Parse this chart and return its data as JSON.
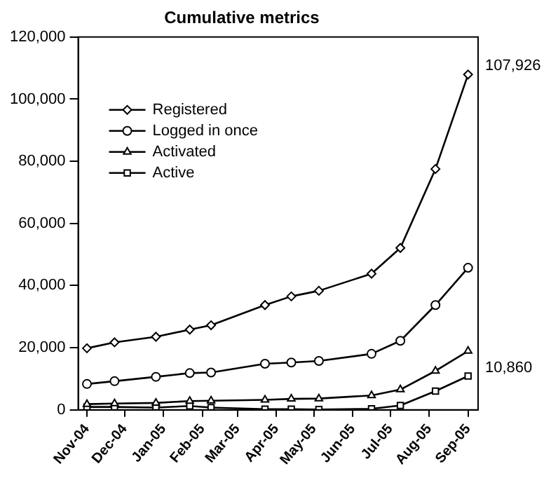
{
  "chart_data": {
    "type": "line",
    "title": "Cumulative metrics",
    "x": [
      "2004-11-01",
      "2004-11-23",
      "2004-12-26",
      "2005-01-22",
      "2005-02-08",
      "2005-03-23",
      "2005-04-13",
      "2005-05-05",
      "2005-06-16",
      "2005-07-09",
      "2005-08-06",
      "2005-09-01"
    ],
    "series": [
      {
        "name": "Registered",
        "color": "#000000",
        "marker": "diamond",
        "values": [
          19800,
          21700,
          23500,
          25800,
          27200,
          33700,
          36500,
          38300,
          43800,
          52100,
          77500,
          107926
        ]
      },
      {
        "name": "Logged in once",
        "color": "#000000",
        "marker": "circle",
        "values": [
          8300,
          9200,
          10600,
          11800,
          12000,
          14800,
          15200,
          15700,
          18000,
          22200,
          33700,
          45700
        ]
      },
      {
        "name": "Activated",
        "color": "#000000",
        "marker": "triangle",
        "values": [
          1800,
          2000,
          2200,
          2800,
          2900,
          3200,
          3500,
          3600,
          4600,
          6500,
          12500,
          18900
        ]
      },
      {
        "name": "Active",
        "color": "#000000",
        "marker": "square",
        "values": [
          900,
          900,
          700,
          1200,
          700,
          200,
          200,
          100,
          300,
          1400,
          6000,
          10860
        ]
      }
    ],
    "xlim": [
      "2004-10-25",
      "2005-09-09"
    ],
    "xticks": [
      {
        "value": "2004-11",
        "label": "Nov-04"
      },
      {
        "value": "2004-12",
        "label": "Dec-04"
      },
      {
        "value": "2005-01",
        "label": "Jan-05"
      },
      {
        "value": "2005-02",
        "label": "Feb-05"
      },
      {
        "value": "2005-03",
        "label": "Mar-05"
      },
      {
        "value": "2005-04",
        "label": "Apr-05"
      },
      {
        "value": "2005-05",
        "label": "May-05"
      },
      {
        "value": "2005-06",
        "label": "Jun-05"
      },
      {
        "value": "2005-07",
        "label": "Jul-05"
      },
      {
        "value": "2005-08",
        "label": "Aug-05"
      },
      {
        "value": "2005-09",
        "label": "Sep-05"
      }
    ],
    "ylim": [
      0,
      120000
    ],
    "yticks": [
      {
        "value": 0,
        "label": "0"
      },
      {
        "value": 20000,
        "label": "20,000"
      },
      {
        "value": 40000,
        "label": "40,000"
      },
      {
        "value": 60000,
        "label": "60,000"
      },
      {
        "value": 80000,
        "label": "80,000"
      },
      {
        "value": 100000,
        "label": "100,000"
      },
      {
        "value": 120000,
        "label": "120,000"
      }
    ],
    "annotations": [
      {
        "text": "107,926",
        "x": "2005-09-01",
        "y": 107926
      },
      {
        "text": "10,860",
        "x": "2005-09-01",
        "y": 10860
      }
    ],
    "legend": "top left",
    "grid": false,
    "line_style": "solid"
  }
}
